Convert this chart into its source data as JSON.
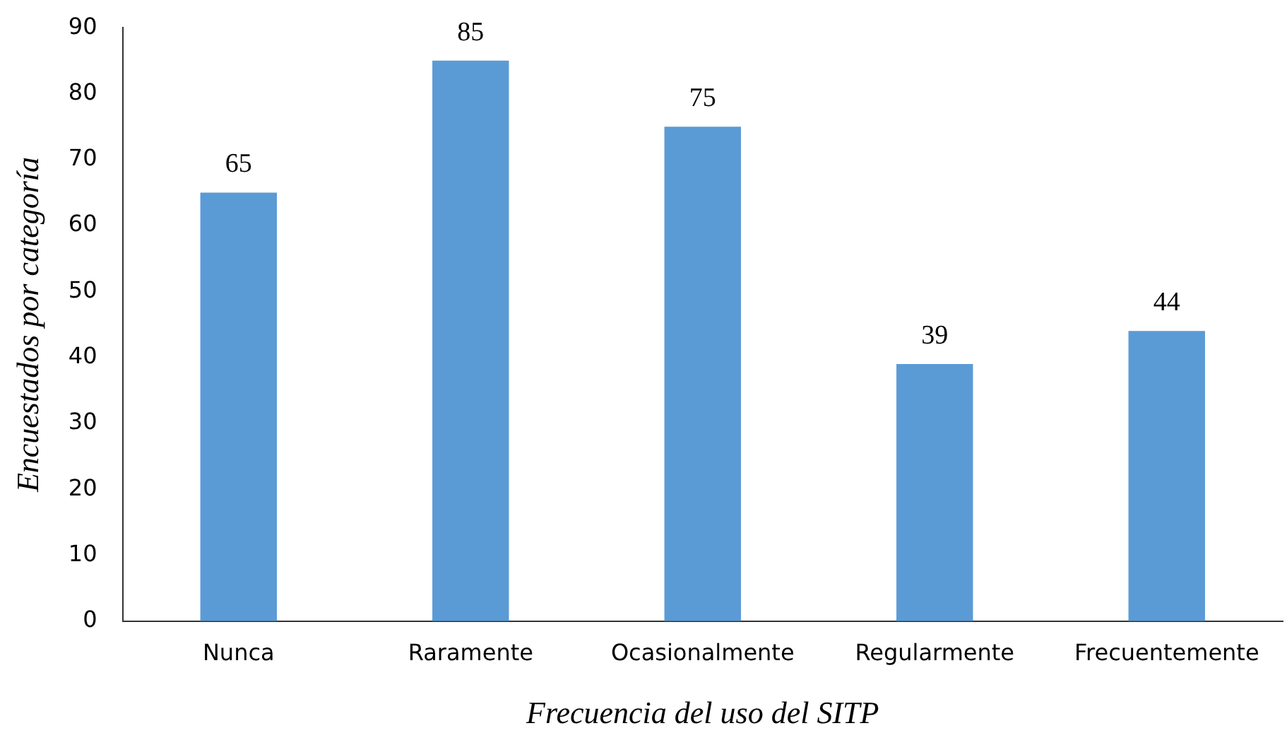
{
  "chart_data": {
    "type": "bar",
    "xlabel": "Frecuencia del uso del SITP",
    "ylabel": "Encuestados por categoría",
    "categories": [
      "Nunca",
      "Raramente",
      "Ocasionalmente",
      "Regularmente",
      "Frecuentemente"
    ],
    "values": [
      65,
      85,
      75,
      39,
      44
    ],
    "color": "#5b9bd5",
    "ylim": [
      0,
      90
    ],
    "yticks": [
      0,
      10,
      20,
      30,
      40,
      50,
      60,
      70,
      80,
      90
    ],
    "grid": false,
    "legend": false,
    "data_labels": true
  }
}
